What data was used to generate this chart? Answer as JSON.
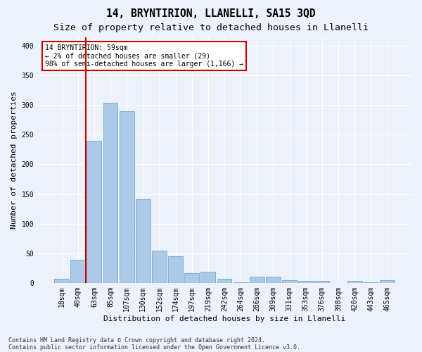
{
  "title1": "14, BRYNTIRION, LLANELLI, SA15 3QD",
  "title2": "Size of property relative to detached houses in Llanelli",
  "xlabel": "Distribution of detached houses by size in Llanelli",
  "ylabel": "Number of detached properties",
  "categories": [
    "18sqm",
    "40sqm",
    "63sqm",
    "85sqm",
    "107sqm",
    "130sqm",
    "152sqm",
    "174sqm",
    "197sqm",
    "219sqm",
    "242sqm",
    "264sqm",
    "286sqm",
    "309sqm",
    "331sqm",
    "353sqm",
    "376sqm",
    "398sqm",
    "420sqm",
    "443sqm",
    "465sqm"
  ],
  "values": [
    7,
    39,
    240,
    304,
    290,
    141,
    54,
    45,
    17,
    19,
    7,
    1,
    10,
    10,
    5,
    3,
    3,
    0,
    3,
    1,
    4
  ],
  "bar_color": "#adc9e8",
  "bar_edge_color": "#6aaad4",
  "highlight_color": "#cc0000",
  "annotation_text": "14 BRYNTIRION: 59sqm\n← 2% of detached houses are smaller (29)\n98% of semi-detached houses are larger (1,166) →",
  "annotation_box_color": "#ffffff",
  "annotation_box_edge_color": "#cc0000",
  "ylim": [
    0,
    415
  ],
  "yticks": [
    0,
    50,
    100,
    150,
    200,
    250,
    300,
    350,
    400
  ],
  "footer1": "Contains HM Land Registry data © Crown copyright and database right 2024.",
  "footer2": "Contains public sector information licensed under the Open Government Licence v3.0.",
  "bg_color": "#edf2fa",
  "grid_color": "#ffffff",
  "title1_fontsize": 10.5,
  "title2_fontsize": 9.5,
  "tick_fontsize": 7,
  "label_fontsize": 8,
  "footer_fontsize": 6,
  "ann_fontsize": 7
}
